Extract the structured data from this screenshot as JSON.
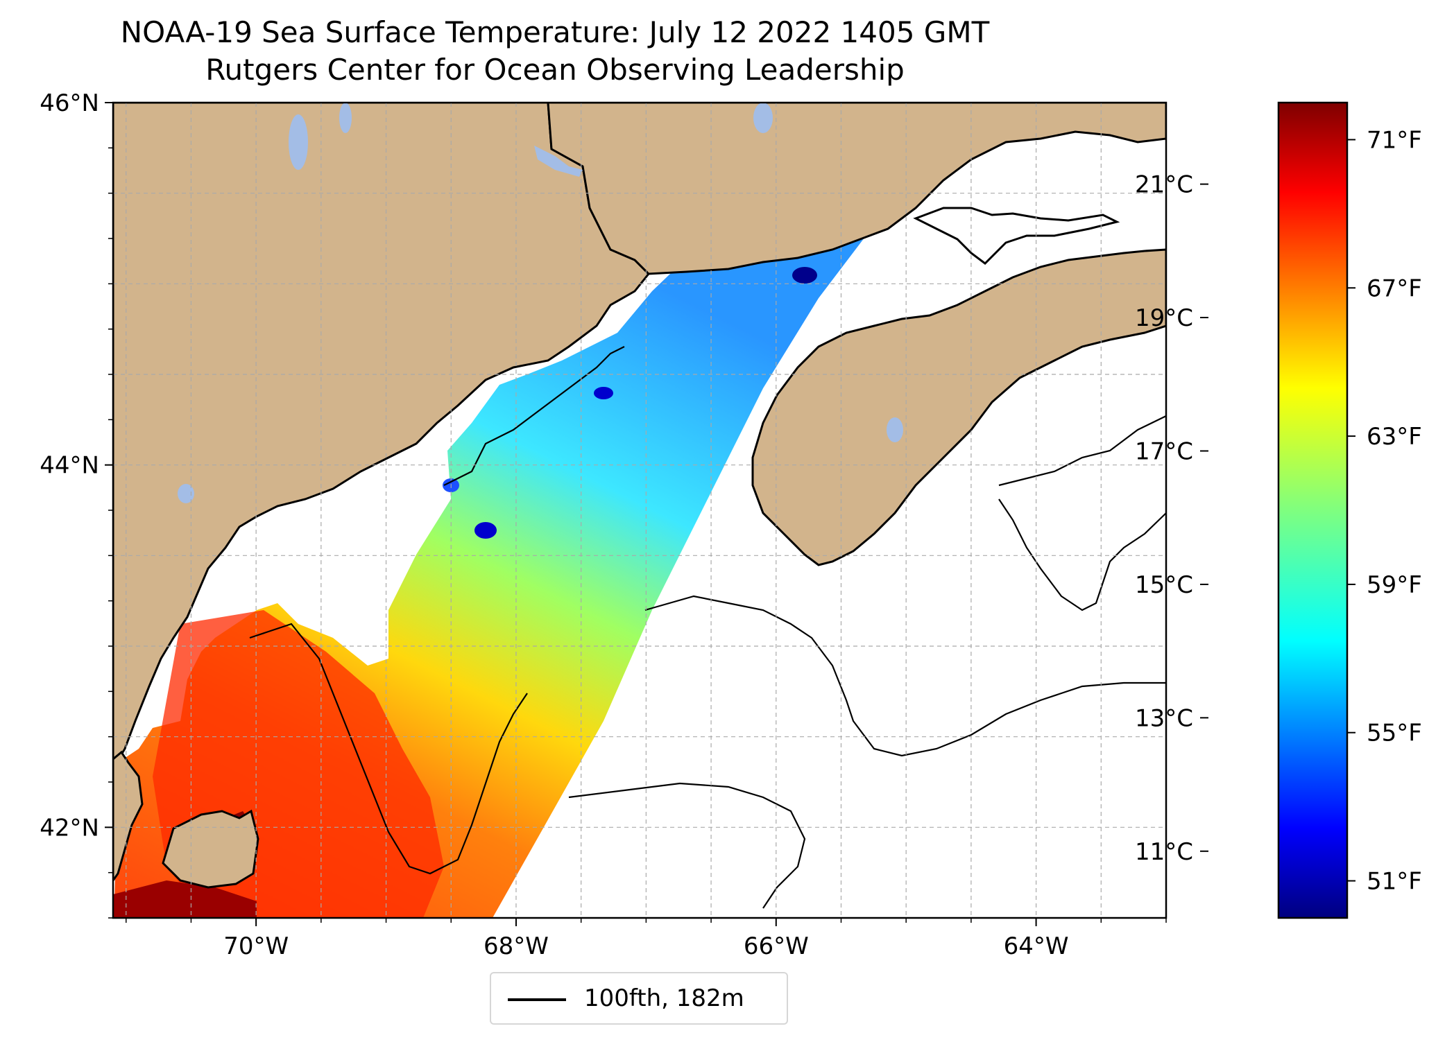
{
  "title": {
    "line1": "NOAA-19 Sea Surface Temperature: July 12 2022 1405 GMT",
    "line2": "Rutgers Center for Ocean Observing Leadership"
  },
  "map": {
    "lon_range": [
      -71.1,
      -63.0
    ],
    "lat_range": [
      41.5,
      46.0
    ],
    "lat_ticks": [
      {
        "value": 46,
        "label": "46°N"
      },
      {
        "value": 44,
        "label": "44°N"
      },
      {
        "value": 42,
        "label": "42°N"
      }
    ],
    "lon_ticks": [
      {
        "value": -70,
        "label": "70°W"
      },
      {
        "value": -68,
        "label": "68°W"
      },
      {
        "value": -66,
        "label": "66°W"
      },
      {
        "value": -64,
        "label": "64°W"
      }
    ],
    "gridlines": true,
    "colors": {
      "land": "#d2b48c",
      "lakes": "#a3bde6",
      "coastline": "#000000",
      "ocean_no_data": "#ffffff",
      "grid": "#a9a9a9"
    }
  },
  "legend": {
    "label": "100fth, 182m",
    "line_color": "#000000",
    "position": "lower-center"
  },
  "colorbar": {
    "colormap": "jet",
    "celsius_ticks": [
      {
        "value": 21,
        "label": "21°C"
      },
      {
        "value": 19,
        "label": "19°C"
      },
      {
        "value": 17,
        "label": "17°C"
      },
      {
        "value": 15,
        "label": "15°C"
      },
      {
        "value": 13,
        "label": "13°C"
      },
      {
        "value": 11,
        "label": "11°C"
      }
    ],
    "fahrenheit_ticks": [
      {
        "value": 71,
        "label": "71°F"
      },
      {
        "value": 67,
        "label": "67°F"
      },
      {
        "value": 63,
        "label": "63°F"
      },
      {
        "value": 59,
        "label": "59°F"
      },
      {
        "value": 55,
        "label": "55°F"
      },
      {
        "value": 51,
        "label": "51°F"
      }
    ],
    "range_f": [
      50.0,
      72.0
    ]
  }
}
